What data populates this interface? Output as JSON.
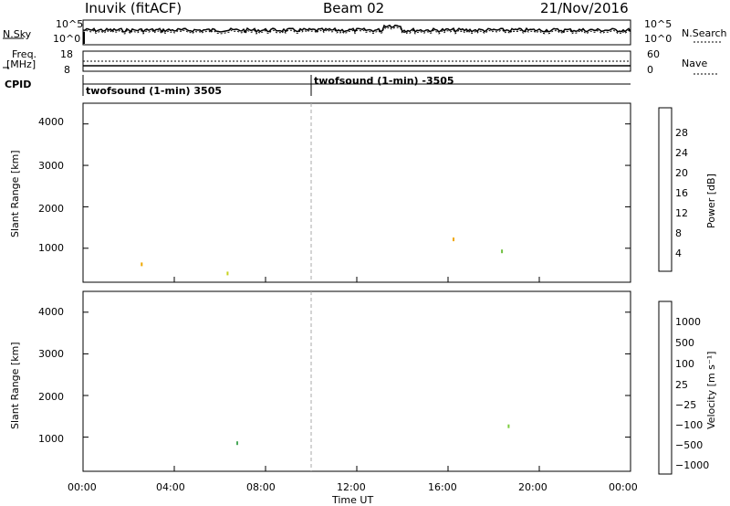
{
  "header": {
    "station": "Inuvik (fitACF)",
    "beam": "Beam 02",
    "date": "21/Nov/2016"
  },
  "panel_labels": {
    "nsky": "N.Sky",
    "nsky_ticks": [
      "10^5",
      "10^0"
    ],
    "nsearch": "N.Search",
    "nsearch_ticks": [
      "10^5",
      "10^0"
    ],
    "freq": "Freq.",
    "freq_unit": "[MHz]",
    "freq_ticks": [
      "18",
      "8"
    ],
    "nave": "Nave",
    "nave_ticks": [
      "60",
      "0"
    ],
    "cpid": "CPID",
    "cpid_segments": [
      "twofsound (1-min) 3505",
      "twofsound (1-min) -3505"
    ]
  },
  "colors": {
    "power_scale": [
      "#0000ff",
      "#1e3f9e",
      "#2e7b3e",
      "#3a9a5a",
      "#6fbf3f",
      "#c8d21e",
      "#f0a800",
      "#ff6400",
      "#ff2000",
      "#ff0000"
    ],
    "velocity_scale": [
      "#1a3fbf",
      "#2e6f9a",
      "#2e7b3e",
      "#4aa85a",
      "#7ccc3e",
      "#c8c8c8",
      "#f0b000",
      "#ff8c00",
      "#ff5000",
      "#ff0000"
    ],
    "axis": "#000000"
  },
  "chart_data": [
    {
      "type": "heatmap",
      "name": "power",
      "ylabel": "Slant Range [km]",
      "yticks": [
        "1000",
        "2000",
        "3000",
        "4000"
      ],
      "xticks": [
        "00:00",
        "04:00",
        "08:00",
        "12:00",
        "16:00",
        "20:00",
        "00:00"
      ],
      "colorbar_label": "Power [dB]",
      "colorbar_ticks": [
        "28",
        "24",
        "20",
        "16",
        "12",
        "8",
        "4"
      ],
      "ylim": [
        180,
        4500
      ],
      "xlim": [
        0,
        24
      ]
    },
    {
      "type": "heatmap",
      "name": "velocity",
      "ylabel": "Slant Range [km]",
      "yticks": [
        "1000",
        "2000",
        "3000",
        "4000"
      ],
      "xticks": [
        "00:00",
        "04:00",
        "08:00",
        "12:00",
        "16:00",
        "20:00",
        "00:00"
      ],
      "xlabel": "Time UT",
      "colorbar_label": "Velocity [m s⁻¹]",
      "colorbar_ticks": [
        "1000",
        "500",
        "100",
        "25",
        "−25",
        "−100",
        "−500",
        "−1000"
      ],
      "ylim": [
        180,
        4500
      ],
      "xlim": [
        0,
        24
      ]
    }
  ]
}
